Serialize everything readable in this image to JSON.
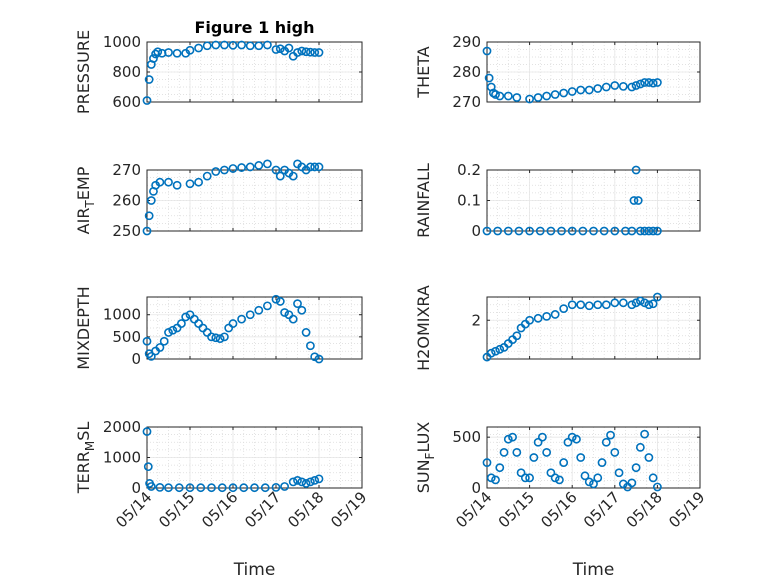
{
  "figure": {
    "title": "Figure 1 high",
    "marker_color": "#0072BD"
  },
  "chart_data": [
    {
      "type": "scatter",
      "title": "Figure 1 high",
      "ylabel": "PRESSURE",
      "ylabel_sub": "",
      "ylim": [
        600,
        1000
      ],
      "yticks": [
        600,
        800,
        1000
      ],
      "xlim": [
        0,
        5
      ],
      "x": [
        0,
        0.05,
        0.1,
        0.15,
        0.2,
        0.25,
        0.35,
        0.5,
        0.7,
        0.9,
        1.0,
        1.2,
        1.4,
        1.6,
        1.8,
        2.0,
        2.2,
        2.4,
        2.6,
        2.8,
        3.0,
        3.1,
        3.2,
        3.3,
        3.4,
        3.5,
        3.6,
        3.7,
        3.8,
        3.9,
        4.0
      ],
      "y": [
        610,
        750,
        850,
        890,
        920,
        935,
        925,
        930,
        925,
        925,
        945,
        960,
        975,
        980,
        980,
        978,
        980,
        975,
        975,
        980,
        950,
        955,
        940,
        960,
        905,
        930,
        940,
        935,
        932,
        930,
        930
      ]
    },
    {
      "type": "scatter",
      "title": "",
      "ylabel": "THETA",
      "ylabel_sub": "",
      "ylim": [
        270,
        290
      ],
      "yticks": [
        270,
        280,
        290
      ],
      "xlim": [
        0,
        5
      ],
      "x": [
        0,
        0.05,
        0.1,
        0.15,
        0.2,
        0.3,
        0.5,
        0.7,
        1.0,
        1.2,
        1.4,
        1.6,
        1.8,
        2.0,
        2.2,
        2.4,
        2.6,
        2.8,
        3.0,
        3.2,
        3.4,
        3.5,
        3.6,
        3.7,
        3.8,
        3.9,
        4.0
      ],
      "y": [
        287,
        278,
        275,
        273,
        272.5,
        272,
        272,
        271.5,
        271,
        271.5,
        272,
        272.5,
        273,
        273.5,
        274,
        274,
        274.5,
        275,
        275.5,
        275.2,
        275,
        275.5,
        276,
        276.5,
        276.5,
        276.3,
        276.5
      ]
    },
    {
      "type": "scatter",
      "title": "",
      "ylabel": "AIR",
      "ylabel_sub": "T",
      "ylabel_rest": "EMP",
      "ylim": [
        250,
        270
      ],
      "yticks": [
        250,
        260,
        270
      ],
      "xlim": [
        0,
        5
      ],
      "x": [
        0,
        0.05,
        0.1,
        0.15,
        0.2,
        0.3,
        0.5,
        0.7,
        1.0,
        1.2,
        1.4,
        1.6,
        1.8,
        2.0,
        2.2,
        2.4,
        2.6,
        2.8,
        3.0,
        3.1,
        3.2,
        3.3,
        3.4,
        3.5,
        3.6,
        3.7,
        3.8,
        3.9,
        4.0
      ],
      "y": [
        250,
        255,
        260,
        263,
        265,
        266,
        266,
        265,
        265.5,
        266,
        268,
        269.5,
        270,
        270.5,
        270.8,
        271,
        271.5,
        272,
        270,
        268,
        270,
        269,
        268,
        272,
        271,
        270,
        271,
        271,
        271
      ]
    },
    {
      "type": "scatter",
      "title": "",
      "ylabel": "RAINFALL",
      "ylabel_sub": "",
      "ylim": [
        0,
        0.2
      ],
      "yticks": [
        0,
        0.1,
        0.2
      ],
      "xlim": [
        0,
        5
      ],
      "x": [
        0,
        0.25,
        0.5,
        0.75,
        1.0,
        1.25,
        1.5,
        1.75,
        2.0,
        2.25,
        2.5,
        2.75,
        3.0,
        3.25,
        3.4,
        3.45,
        3.5,
        3.55,
        3.6,
        3.7,
        3.8,
        3.9,
        4.0
      ],
      "y": [
        0,
        0,
        0,
        0,
        0,
        0,
        0,
        0,
        0,
        0,
        0,
        0,
        0,
        0,
        0,
        0.1,
        0.2,
        0.1,
        0,
        0,
        0,
        0,
        0
      ]
    },
    {
      "type": "scatter",
      "title": "",
      "ylabel": "MIXDEPTH",
      "ylabel_sub": "",
      "ylim": [
        0,
        1400
      ],
      "yticks": [
        0,
        500,
        1000
      ],
      "xlim": [
        0,
        5
      ],
      "x": [
        0,
        0.05,
        0.1,
        0.2,
        0.3,
        0.4,
        0.5,
        0.6,
        0.7,
        0.8,
        0.9,
        1.0,
        1.1,
        1.2,
        1.3,
        1.4,
        1.5,
        1.6,
        1.7,
        1.8,
        1.9,
        2.0,
        2.2,
        2.4,
        2.6,
        2.8,
        3.0,
        3.1,
        3.2,
        3.3,
        3.4,
        3.5,
        3.6,
        3.7,
        3.8,
        3.9,
        4.0
      ],
      "y": [
        400,
        120,
        60,
        180,
        260,
        400,
        600,
        650,
        700,
        800,
        950,
        1000,
        900,
        800,
        700,
        600,
        500,
        480,
        460,
        500,
        700,
        800,
        900,
        1000,
        1100,
        1200,
        1350,
        1300,
        1050,
        1000,
        900,
        1250,
        1100,
        600,
        300,
        50,
        0
      ]
    },
    {
      "type": "scatter",
      "title": "",
      "ylabel": "H2OMIXRA",
      "ylabel_sub": "",
      "ylim": [
        0,
        3.2
      ],
      "yticks": [
        2
      ],
      "xlim": [
        0,
        5
      ],
      "x": [
        0,
        0.1,
        0.2,
        0.3,
        0.4,
        0.5,
        0.6,
        0.7,
        0.8,
        0.9,
        1.0,
        1.2,
        1.4,
        1.6,
        1.8,
        2.0,
        2.2,
        2.4,
        2.6,
        2.8,
        3.0,
        3.2,
        3.4,
        3.5,
        3.6,
        3.7,
        3.8,
        3.9,
        4.0
      ],
      "y": [
        0.1,
        0.3,
        0.4,
        0.5,
        0.6,
        0.8,
        1.0,
        1.2,
        1.6,
        1.8,
        2.0,
        2.1,
        2.2,
        2.3,
        2.6,
        2.8,
        2.8,
        2.75,
        2.8,
        2.8,
        2.9,
        2.9,
        2.8,
        2.9,
        3.0,
        2.9,
        2.8,
        2.85,
        3.2
      ]
    },
    {
      "type": "scatter",
      "title": "",
      "ylabel": "TERR",
      "ylabel_sub": "M",
      "ylabel_rest": "SL",
      "ylim": [
        0,
        2000
      ],
      "yticks": [
        0,
        1000,
        2000
      ],
      "xlim": [
        0,
        5
      ],
      "xticks": [
        "05/14",
        "05/15",
        "05/16",
        "05/17",
        "05/18",
        "05/19"
      ],
      "xlabel": "Time",
      "x": [
        0,
        0.03,
        0.06,
        0.1,
        0.3,
        0.5,
        0.75,
        1.0,
        1.25,
        1.5,
        1.75,
        2.0,
        2.25,
        2.5,
        2.75,
        3.0,
        3.2,
        3.4,
        3.5,
        3.6,
        3.7,
        3.8,
        3.9,
        4.0
      ],
      "y": [
        1850,
        700,
        150,
        50,
        20,
        10,
        10,
        10,
        10,
        10,
        10,
        10,
        10,
        10,
        10,
        20,
        50,
        200,
        250,
        200,
        150,
        200,
        250,
        300
      ]
    },
    {
      "type": "scatter",
      "title": "",
      "ylabel": "SUN",
      "ylabel_sub": "F",
      "ylabel_rest": "LUX",
      "ylim": [
        0,
        600
      ],
      "yticks": [
        0,
        500
      ],
      "xlim": [
        0,
        5
      ],
      "xticks": [
        "05/14",
        "05/15",
        "05/16",
        "05/17",
        "05/18",
        "05/19"
      ],
      "xlabel": "Time",
      "x": [
        0,
        0.1,
        0.2,
        0.3,
        0.4,
        0.5,
        0.6,
        0.7,
        0.8,
        0.9,
        1.0,
        1.1,
        1.2,
        1.3,
        1.4,
        1.5,
        1.6,
        1.7,
        1.8,
        1.9,
        2.0,
        2.1,
        2.2,
        2.3,
        2.4,
        2.5,
        2.6,
        2.7,
        2.8,
        2.9,
        3.0,
        3.1,
        3.2,
        3.3,
        3.4,
        3.5,
        3.6,
        3.7,
        3.8,
        3.9,
        4.0
      ],
      "y": [
        250,
        100,
        80,
        200,
        350,
        480,
        500,
        350,
        150,
        100,
        100,
        300,
        450,
        500,
        350,
        150,
        100,
        80,
        250,
        450,
        500,
        480,
        300,
        120,
        60,
        40,
        100,
        250,
        450,
        520,
        350,
        150,
        40,
        10,
        50,
        200,
        400,
        530,
        300,
        100,
        10
      ]
    }
  ]
}
